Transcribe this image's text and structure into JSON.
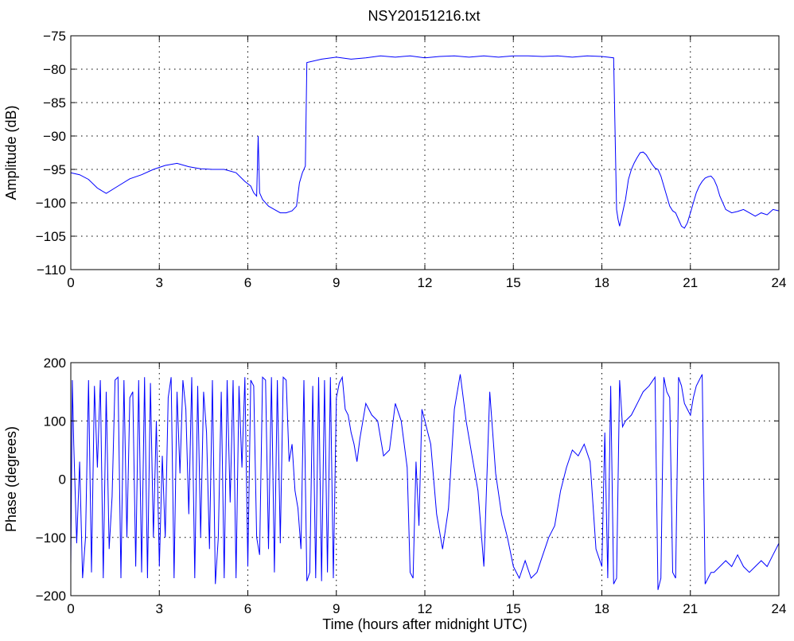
{
  "title": "NSY20151216.txt",
  "chart_data": [
    {
      "type": "line",
      "title": "NSY20151216.txt",
      "xlabel": "",
      "ylabel": "Amplitude (dB)",
      "xlim": [
        0,
        24
      ],
      "ylim": [
        -110,
        -75
      ],
      "xticks": [
        0,
        3,
        6,
        9,
        12,
        15,
        18,
        21,
        24
      ],
      "yticks": [
        -110,
        -105,
        -100,
        -95,
        -90,
        -85,
        -80,
        -75
      ],
      "grid": true,
      "series_color": "#0000ff",
      "x": [
        0,
        0.3,
        0.6,
        0.9,
        1.2,
        1.6,
        2.0,
        2.4,
        2.8,
        3.2,
        3.6,
        4.0,
        4.4,
        4.8,
        5.2,
        5.6,
        5.9,
        6.1,
        6.2,
        6.3,
        6.35,
        6.4,
        6.5,
        6.7,
        6.9,
        7.1,
        7.3,
        7.5,
        7.65,
        7.75,
        7.85,
        7.95,
        8.0,
        8.5,
        9,
        9.5,
        10,
        10.5,
        11,
        11.5,
        12,
        12.5,
        13,
        13.5,
        14,
        14.5,
        15,
        15.5,
        16,
        16.5,
        17,
        17.5,
        18,
        18.4,
        18.45,
        18.5,
        18.55,
        18.6,
        18.7,
        18.8,
        18.9,
        19.0,
        19.1,
        19.2,
        19.3,
        19.4,
        19.5,
        19.6,
        19.7,
        19.8,
        19.9,
        20.0,
        20.1,
        20.2,
        20.3,
        20.4,
        20.5,
        20.6,
        20.7,
        20.8,
        20.9,
        21.0,
        21.1,
        21.2,
        21.3,
        21.4,
        21.5,
        21.6,
        21.7,
        21.8,
        21.9,
        22.0,
        22.2,
        22.4,
        22.6,
        22.8,
        23.0,
        23.2,
        23.4,
        23.6,
        23.8,
        24.0
      ],
      "values": [
        -95.5,
        -95.8,
        -96.5,
        -97.8,
        -98.6,
        -97.5,
        -96.4,
        -95.8,
        -95.0,
        -94.4,
        -94.1,
        -94.6,
        -94.9,
        -95.0,
        -95.0,
        -95.5,
        -96.8,
        -97.5,
        -98.5,
        -99.0,
        -90.0,
        -98.5,
        -99.5,
        -100.5,
        -101.0,
        -101.5,
        -101.5,
        -101.2,
        -100.5,
        -97.0,
        -95.5,
        -94.5,
        -79.0,
        -78.5,
        -78.2,
        -78.5,
        -78.3,
        -78.0,
        -78.2,
        -78.0,
        -78.3,
        -78.1,
        -78.0,
        -78.2,
        -78.0,
        -78.2,
        -78.0,
        -78.0,
        -78.1,
        -78.0,
        -78.2,
        -78.0,
        -78.1,
        -78.3,
        -90.0,
        -101.0,
        -102.5,
        -103.5,
        -101.5,
        -99.5,
        -96.5,
        -95.0,
        -94.0,
        -93.2,
        -92.5,
        -92.4,
        -92.8,
        -93.5,
        -94.2,
        -94.8,
        -95.0,
        -96.0,
        -97.5,
        -99.0,
        -100.5,
        -101.2,
        -101.5,
        -102.5,
        -103.5,
        -103.8,
        -103.0,
        -101.5,
        -100.0,
        -98.5,
        -97.5,
        -96.8,
        -96.3,
        -96.1,
        -96.0,
        -96.5,
        -97.5,
        -99.0,
        -101.0,
        -101.5,
        -101.3,
        -101.0,
        -101.5,
        -102.0,
        -101.5,
        -101.8,
        -101.0,
        -101.2
      ]
    },
    {
      "type": "line",
      "title": "",
      "xlabel": "Time (hours after midnight UTC)",
      "ylabel": "Phase (degrees)",
      "xlim": [
        0,
        24
      ],
      "ylim": [
        -200,
        200
      ],
      "xticks": [
        0,
        3,
        6,
        9,
        12,
        15,
        18,
        21,
        24
      ],
      "yticks": [
        -200,
        -100,
        0,
        100,
        200
      ],
      "grid": true,
      "series_color": "#0000ff",
      "x": [
        0,
        0.05,
        0.1,
        0.2,
        0.3,
        0.4,
        0.5,
        0.6,
        0.7,
        0.8,
        0.9,
        1.0,
        1.1,
        1.2,
        1.3,
        1.4,
        1.5,
        1.6,
        1.7,
        1.8,
        1.9,
        2.0,
        2.1,
        2.2,
        2.3,
        2.4,
        2.5,
        2.6,
        2.7,
        2.8,
        2.9,
        3.0,
        3.1,
        3.2,
        3.3,
        3.4,
        3.5,
        3.6,
        3.7,
        3.8,
        3.9,
        4.0,
        4.1,
        4.2,
        4.3,
        4.4,
        4.5,
        4.6,
        4.7,
        4.8,
        4.9,
        5.0,
        5.1,
        5.2,
        5.3,
        5.4,
        5.5,
        5.6,
        5.7,
        5.8,
        5.9,
        6.0,
        6.1,
        6.2,
        6.3,
        6.4,
        6.5,
        6.6,
        6.7,
        6.8,
        6.9,
        7.0,
        7.1,
        7.2,
        7.3,
        7.4,
        7.5,
        7.6,
        7.7,
        7.8,
        7.9,
        8.0,
        8.1,
        8.2,
        8.3,
        8.4,
        8.5,
        8.6,
        8.7,
        8.8,
        8.9,
        9.0,
        9.1,
        9.2,
        9.3,
        9.4,
        9.5,
        9.6,
        9.7,
        9.8,
        9.9,
        10.0,
        10.2,
        10.4,
        10.6,
        10.8,
        11.0,
        11.2,
        11.4,
        11.5,
        11.6,
        11.7,
        11.8,
        11.9,
        12.0,
        12.2,
        12.4,
        12.6,
        12.8,
        13.0,
        13.2,
        13.4,
        13.6,
        13.8,
        14.0,
        14.2,
        14.4,
        14.6,
        14.8,
        15.0,
        15.2,
        15.4,
        15.6,
        15.8,
        16.0,
        16.2,
        16.4,
        16.6,
        16.8,
        17.0,
        17.2,
        17.4,
        17.6,
        17.8,
        18.0,
        18.1,
        18.2,
        18.3,
        18.4,
        18.5,
        18.6,
        18.7,
        18.8,
        19.0,
        19.2,
        19.4,
        19.6,
        19.8,
        19.9,
        20.0,
        20.1,
        20.2,
        20.3,
        20.4,
        20.5,
        20.6,
        20.7,
        20.8,
        20.9,
        21.0,
        21.1,
        21.2,
        21.3,
        21.4,
        21.5,
        21.6,
        21.7,
        21.8,
        22.0,
        22.2,
        22.4,
        22.6,
        22.8,
        23.0,
        23.2,
        23.4,
        23.6,
        23.8,
        24.0
      ],
      "values": [
        -150,
        170,
        60,
        -110,
        30,
        -170,
        -100,
        170,
        -160,
        160,
        20,
        170,
        -170,
        150,
        -120,
        -30,
        170,
        175,
        -170,
        170,
        -100,
        140,
        150,
        -150,
        170,
        -160,
        175,
        -170,
        165,
        -100,
        100,
        -150,
        40,
        -100,
        140,
        175,
        -170,
        150,
        10,
        170,
        120,
        -60,
        175,
        -170,
        160,
        -100,
        150,
        80,
        -120,
        170,
        -180,
        -100,
        150,
        -170,
        170,
        -40,
        170,
        -170,
        160,
        20,
        175,
        -150,
        170,
        160,
        -100,
        -130,
        175,
        170,
        -120,
        175,
        -160,
        170,
        -110,
        175,
        170,
        30,
        60,
        -20,
        -50,
        -120,
        170,
        -175,
        -160,
        160,
        -170,
        175,
        -175,
        170,
        -160,
        175,
        -170,
        140,
        165,
        175,
        120,
        110,
        80,
        60,
        30,
        70,
        100,
        130,
        110,
        100,
        40,
        50,
        130,
        100,
        20,
        -160,
        -170,
        30,
        -80,
        120,
        100,
        60,
        -60,
        -120,
        -50,
        120,
        180,
        100,
        40,
        -20,
        -150,
        150,
        10,
        -60,
        -100,
        -150,
        -170,
        -140,
        -170,
        -160,
        -130,
        -100,
        -80,
        -20,
        20,
        50,
        40,
        60,
        30,
        -120,
        -150,
        80,
        -170,
        160,
        -180,
        -170,
        170,
        90,
        100,
        110,
        130,
        150,
        160,
        175,
        -190,
        -170,
        175,
        150,
        140,
        -160,
        -170,
        175,
        160,
        130,
        120,
        110,
        140,
        160,
        170,
        180,
        -180,
        -170,
        -160,
        -160,
        -150,
        -140,
        -150,
        -130,
        -150,
        -160,
        -150,
        -140,
        -150,
        -130,
        -110
      ]
    }
  ]
}
